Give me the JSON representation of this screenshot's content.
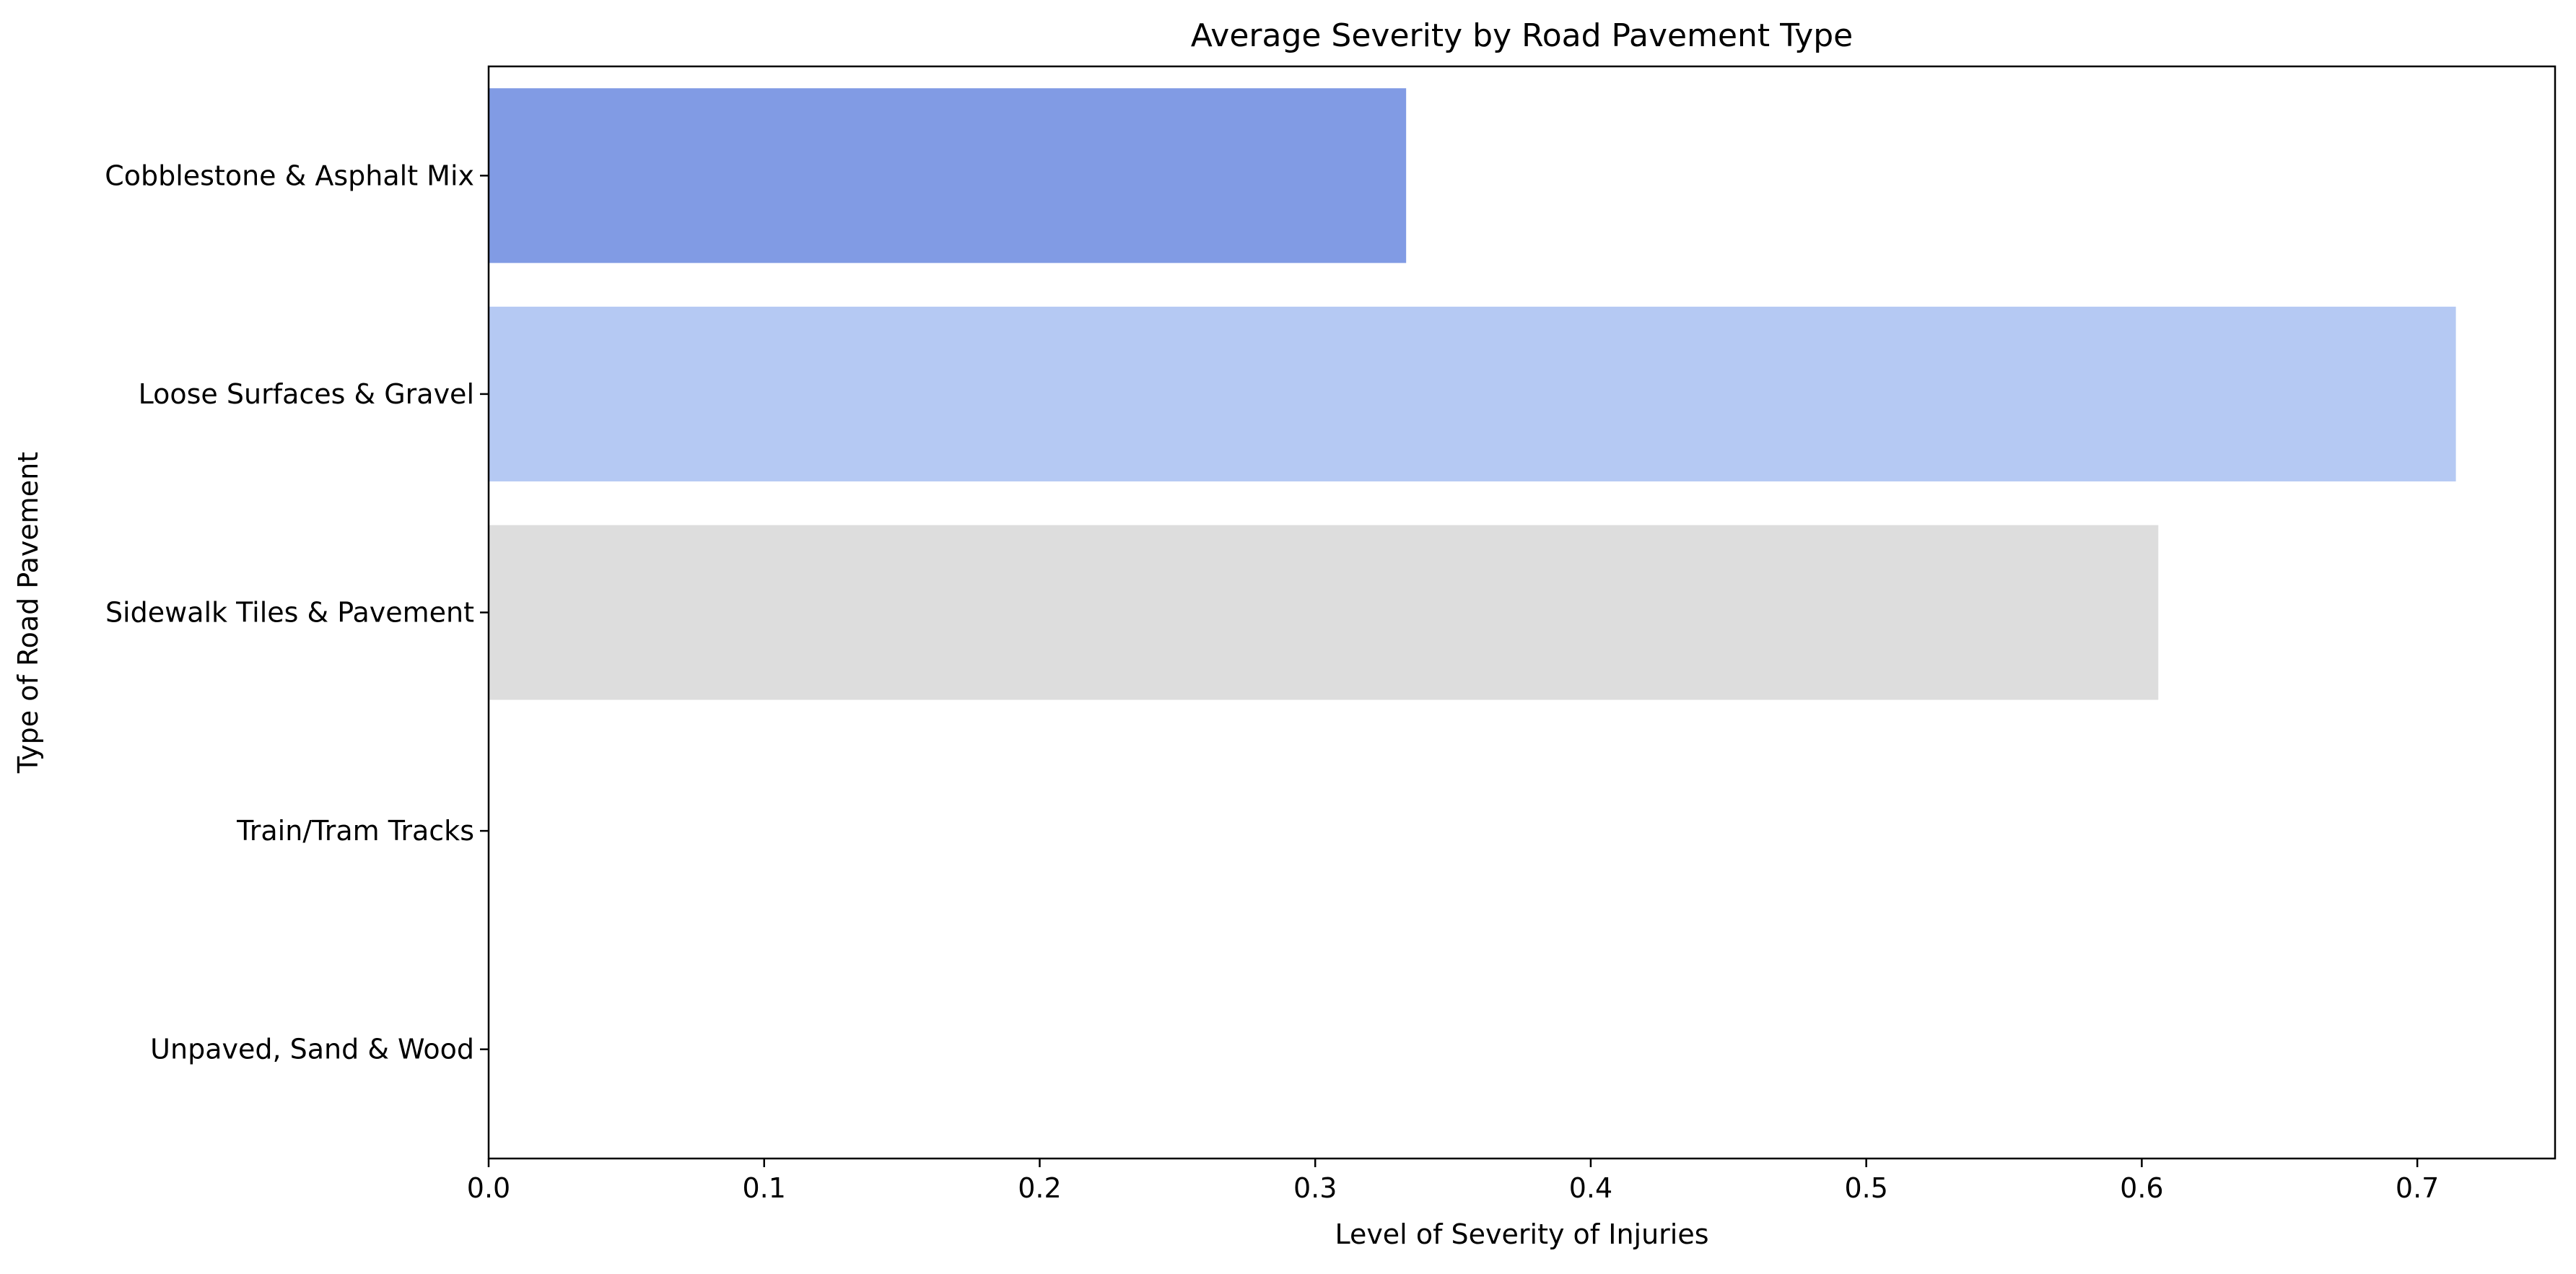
{
  "chart_data": {
    "type": "bar",
    "orientation": "horizontal",
    "title": "Average Severity by Road Pavement Type",
    "xlabel": "Level of Severity of Injuries",
    "ylabel": "Type of Road Pavement",
    "categories": [
      "Cobblestone & Asphalt Mix",
      "Loose Surfaces & Gravel",
      "Sidewalk Tiles & Pavement",
      "Train/Tram Tracks",
      "Unpaved, Sand & Wood"
    ],
    "values": [
      0.333,
      0.714,
      0.606,
      0.0,
      0.0
    ],
    "colors": [
      "#819be4",
      "#b5c9f3",
      "#dddddd",
      "#ecc2ae",
      "#e0836a"
    ],
    "xlim": [
      0,
      0.75
    ],
    "xticks": [
      0.0,
      0.1,
      0.2,
      0.3,
      0.4,
      0.5,
      0.6,
      0.7
    ],
    "xtick_labels": [
      "0.0",
      "0.1",
      "0.2",
      "0.3",
      "0.4",
      "0.5",
      "0.6",
      "0.7"
    ],
    "grid": false,
    "legend": "none"
  }
}
